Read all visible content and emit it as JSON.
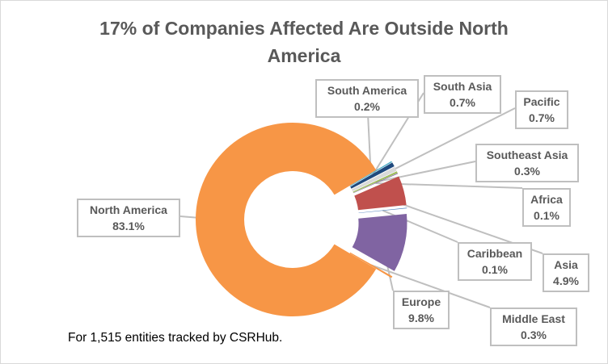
{
  "chart_data": {
    "type": "pie",
    "variant": "exploded-donut",
    "title": "17% of Companies Affected Are Outside North America",
    "title_lines": [
      "17% of Companies Affected Are Outside North",
      "America"
    ],
    "footnote": "For 1,515 entities tracked by CSRHub.",
    "slices": [
      {
        "name": "North America",
        "value": 83.1,
        "label": "83.1%",
        "color": "#f79646"
      },
      {
        "name": "South America",
        "value": 0.2,
        "label": "0.2%",
        "color": "#4bacc6"
      },
      {
        "name": "South Asia",
        "value": 0.7,
        "label": "0.7%",
        "color": "#1f497d"
      },
      {
        "name": "Pacific",
        "value": 0.7,
        "label": "0.7%",
        "color": "#d9d9d9"
      },
      {
        "name": "Southeast Asia",
        "value": 0.3,
        "label": "0.3%",
        "color": "#9bbb59"
      },
      {
        "name": "Africa",
        "value": 0.1,
        "label": "0.1%",
        "color": "#8064a2"
      },
      {
        "name": "Asia",
        "value": 4.9,
        "label": "4.9%",
        "color": "#c0504d"
      },
      {
        "name": "Caribbean",
        "value": 0.1,
        "label": "0.1%",
        "color": "#4f81bd"
      },
      {
        "name": "Europe",
        "value": 9.8,
        "label": "9.8%",
        "color": "#8064a2"
      },
      {
        "name": "Middle East",
        "value": 0.3,
        "label": "0.3%",
        "color": "#f79646"
      }
    ],
    "legend": "none",
    "data_labels": "callouts"
  }
}
